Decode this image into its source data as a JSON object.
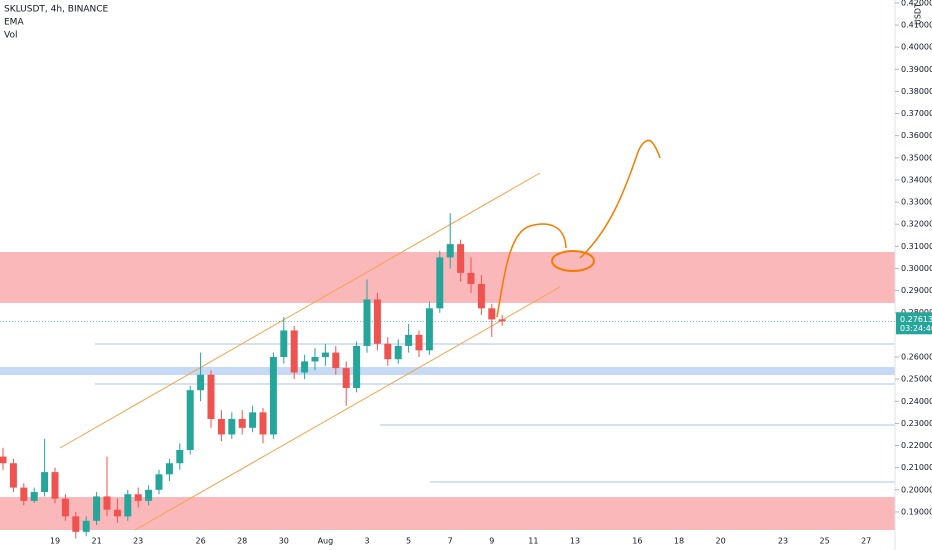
{
  "chart_data": {
    "type": "candlestick",
    "title": "SKLUSDT, 4h, BINANCE",
    "indicators": [
      "EMA",
      "Vol"
    ],
    "currency": "USDT",
    "up_color": "#26a69a",
    "down_color": "#ef5350",
    "categories": [
      null,
      null,
      null,
      null,
      null,
      "19",
      null,
      null,
      null,
      "21",
      null,
      null,
      null,
      "23",
      null,
      null,
      null,
      null,
      null,
      "26",
      null,
      null,
      null,
      "28",
      null,
      null,
      null,
      "30",
      null,
      null,
      null,
      "Aug",
      null,
      null,
      null,
      "3",
      null,
      null,
      null,
      "5",
      null,
      null,
      null,
      "7",
      null,
      null,
      null,
      "9",
      null,
      null,
      null,
      "11",
      null,
      null,
      null,
      "13",
      null,
      null,
      null,
      null,
      null,
      "16",
      null,
      null,
      null,
      "18",
      null,
      null,
      null,
      "20",
      null,
      null,
      null,
      null,
      null,
      "23",
      null,
      null,
      null,
      "25",
      null,
      null,
      null,
      "27",
      null,
      null
    ],
    "open": [
      0.215,
      0.212,
      0.201,
      0.195,
      0.199,
      0.208,
      0.196,
      0.188,
      0.181,
      0.186,
      0.197,
      0.191,
      0.188,
      0.198,
      0.195,
      0.2,
      0.207,
      0.212,
      0.218,
      0.245,
      0.252,
      0.232,
      0.225,
      0.232,
      0.228,
      0.235,
      0.225,
      0.26,
      0.272,
      0.253,
      0.258,
      0.26,
      0.262,
      0.255,
      0.246,
      0.265,
      0.286,
      0.266,
      0.259,
      0.265,
      0.27,
      0.263,
      0.282,
      0.305,
      0.311,
      0.298,
      0.293,
      0.282,
      0.277,
      null,
      null,
      null,
      null,
      null,
      null,
      null,
      null,
      null,
      null,
      null,
      null,
      null,
      null,
      null,
      null,
      null,
      null,
      null,
      null,
      null,
      null,
      null,
      null,
      null,
      null,
      null,
      null,
      null,
      null,
      null,
      null,
      null,
      null,
      null,
      null,
      null
    ],
    "high": [
      0.219,
      0.214,
      0.203,
      0.201,
      0.223,
      0.21,
      0.198,
      0.19,
      0.188,
      0.199,
      0.215,
      0.196,
      0.2,
      0.201,
      0.202,
      0.209,
      0.214,
      0.221,
      0.247,
      0.262,
      0.254,
      0.236,
      0.235,
      0.236,
      0.238,
      0.237,
      0.262,
      0.278,
      0.274,
      0.261,
      0.264,
      0.266,
      0.265,
      0.258,
      0.267,
      0.295,
      0.289,
      0.269,
      0.268,
      0.275,
      0.272,
      0.285,
      0.308,
      0.325,
      0.313,
      0.305,
      0.297,
      0.284,
      0.279,
      null,
      null,
      null,
      null,
      null,
      null,
      null,
      null,
      null,
      null,
      null,
      null,
      null,
      null,
      null,
      null,
      null,
      null,
      null,
      null,
      null,
      null,
      null,
      null,
      null,
      null,
      null,
      null,
      null,
      null,
      null,
      null,
      null,
      null,
      null,
      null,
      null
    ],
    "low": [
      0.209,
      0.199,
      0.193,
      0.194,
      0.197,
      0.194,
      0.186,
      0.178,
      0.179,
      0.184,
      0.188,
      0.185,
      0.186,
      0.192,
      0.193,
      0.198,
      0.204,
      0.209,
      0.216,
      0.24,
      0.228,
      0.222,
      0.223,
      0.225,
      0.226,
      0.221,
      0.223,
      0.257,
      0.25,
      0.25,
      0.254,
      0.256,
      0.252,
      0.238,
      0.244,
      0.262,
      0.263,
      0.256,
      0.257,
      0.262,
      0.26,
      0.261,
      0.28,
      0.3,
      0.294,
      0.289,
      0.279,
      0.269,
      0.274,
      null,
      null,
      null,
      null,
      null,
      null,
      null,
      null,
      null,
      null,
      null,
      null,
      null,
      null,
      null,
      null,
      null,
      null,
      null,
      null,
      null,
      null,
      null,
      null,
      null,
      null,
      null,
      null,
      null,
      null,
      null,
      null,
      null,
      null,
      null,
      null,
      null
    ],
    "close": [
      0.212,
      0.201,
      0.195,
      0.199,
      0.208,
      0.196,
      0.188,
      0.181,
      0.186,
      0.197,
      0.191,
      0.188,
      0.198,
      0.195,
      0.2,
      0.207,
      0.212,
      0.218,
      0.245,
      0.252,
      0.232,
      0.225,
      0.232,
      0.228,
      0.235,
      0.225,
      0.26,
      0.272,
      0.253,
      0.258,
      0.26,
      0.262,
      0.255,
      0.246,
      0.265,
      0.286,
      0.266,
      0.259,
      0.265,
      0.27,
      0.263,
      0.282,
      0.305,
      0.311,
      0.298,
      0.293,
      0.282,
      0.277,
      0.27613,
      null,
      null,
      null,
      null,
      null,
      null,
      null,
      null,
      null,
      null,
      null,
      null,
      null,
      null,
      null,
      null,
      null,
      null,
      null,
      null,
      null,
      null,
      null,
      null,
      null,
      null,
      null,
      null,
      null,
      null,
      null,
      null,
      null,
      null,
      null,
      null,
      null
    ],
    "ylim": [
      0.1728,
      0.4213
    ],
    "yticks": [
      {
        "value": 0.19,
        "label": "0.19000"
      },
      {
        "value": 0.2,
        "label": "0.20000"
      },
      {
        "value": 0.21,
        "label": "0.21000"
      },
      {
        "value": 0.22,
        "label": "0.22000"
      },
      {
        "value": 0.23,
        "label": "0.23000"
      },
      {
        "value": 0.24,
        "label": "0.24000"
      },
      {
        "value": 0.25,
        "label": "0.25000"
      },
      {
        "value": 0.26,
        "label": "0.26000"
      },
      {
        "value": 0.28,
        "label": "0.28000"
      },
      {
        "value": 0.29,
        "label": "0.29000"
      },
      {
        "value": 0.3,
        "label": "0.30000"
      },
      {
        "value": 0.31,
        "label": "0.31000"
      },
      {
        "value": 0.32,
        "label": "0.32000"
      },
      {
        "value": 0.33,
        "label": "0.33000"
      },
      {
        "value": 0.34,
        "label": "0.34000"
      },
      {
        "value": 0.35,
        "label": "0.35000"
      },
      {
        "value": 0.36,
        "label": "0.36000"
      },
      {
        "value": 0.37,
        "label": "0.37000"
      },
      {
        "value": 0.38,
        "label": "0.38000"
      },
      {
        "value": 0.39,
        "label": "0.39000"
      },
      {
        "value": 0.4,
        "label": "0.40000"
      },
      {
        "value": 0.41,
        "label": "0.41000"
      },
      {
        "value": 0.42,
        "label": "0.42000"
      }
    ],
    "last_price": 0.27613,
    "countdown": "03:24:40"
  }
}
